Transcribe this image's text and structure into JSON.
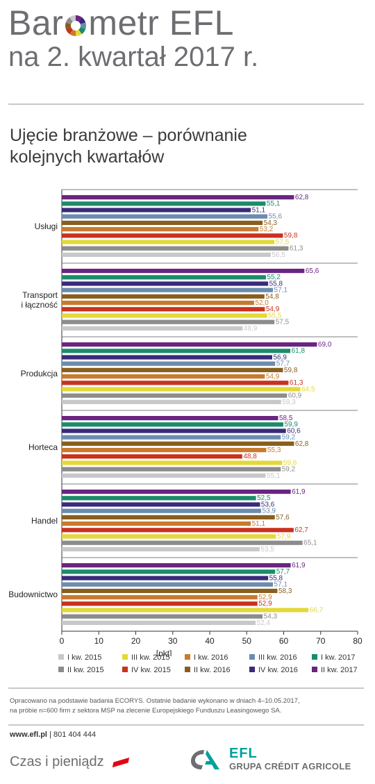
{
  "header": {
    "title_part1": "Bar",
    "title_part2": "metr EFL",
    "title_line2": "na 2. kwartał 2017 r."
  },
  "subtitle": "Ujęcie branżowe – porównanie kolejnych kwartałów",
  "colors": {
    "I kw. 2015": "#c7c8ca",
    "II kw. 2015": "#8c8c8c",
    "III kw. 2015": "#e2d93a",
    "IV kw. 2015": "#c8321e",
    "I kw. 2016": "#c87a2e",
    "II kw. 2016": "#8a5e1e",
    "III kw. 2016": "#6a8caf",
    "IV kw. 2016": "#3a2a7a",
    "I kw. 2017": "#1a8c6a",
    "II kw. 2017": "#6a2580"
  },
  "chart_data": {
    "type": "bar",
    "orientation": "horizontal",
    "xlabel": "[pkt]",
    "xlim": [
      0,
      80
    ],
    "xticks": [
      "0",
      "10",
      "20",
      "30",
      "40",
      "50",
      "60",
      "70",
      "80"
    ],
    "grid": false,
    "legend_position": "bottom",
    "categories": [
      "Usługi",
      "Transport i łączność",
      "Produkcja",
      "Horteca",
      "Handel",
      "Budownictwo"
    ],
    "series": [
      {
        "name": "II kw. 2017",
        "color": "#6a2580",
        "values": [
          "62,8",
          "65,6",
          "69,0",
          "58,5",
          "61,9",
          "61,9"
        ]
      },
      {
        "name": "I kw. 2017",
        "color": "#1a8c6a",
        "values": [
          "55,1",
          "55,2",
          "61,8",
          "59,9",
          "52,5",
          "57,7"
        ]
      },
      {
        "name": "IV kw. 2016",
        "color": "#3a2a7a",
        "values": [
          "51,1",
          "55,8",
          "56,9",
          "60,6",
          "53,6",
          "55,8"
        ]
      },
      {
        "name": "III kw. 2016",
        "color": "#6a8caf",
        "values": [
          "55,6",
          "57,1",
          "57,7",
          "59,2",
          "53,9",
          "57,1"
        ]
      },
      {
        "name": "II kw. 2016",
        "color": "#8a5e1e",
        "values": [
          "54,3",
          "54,8",
          "59,8",
          "62,8",
          "57,6",
          "58,3"
        ]
      },
      {
        "name": "I kw. 2016",
        "color": "#c87a2e",
        "values": [
          "53,2",
          "52,0",
          "54,9",
          "55,3",
          "51,1",
          "52,9"
        ]
      },
      {
        "name": "IV kw. 2015",
        "color": "#c8321e",
        "values": [
          "59,8",
          "54,9",
          "61,3",
          "48,8",
          "62,7",
          "52,9"
        ]
      },
      {
        "name": "III kw. 2015",
        "color": "#e2d93a",
        "values": [
          "57,5",
          "55,5",
          "64,5",
          "59,6",
          "57,9",
          "66,7"
        ]
      },
      {
        "name": "II kw. 2015",
        "color": "#8c8c8c",
        "values": [
          "61,3",
          "57,5",
          "60,9",
          "59,2",
          "65,1",
          "54,3"
        ]
      },
      {
        "name": "I kw. 2015",
        "color": "#c7c8ca",
        "values": [
          "56,5",
          "48,9",
          "59,3",
          "55,1",
          "53,5",
          "52,4"
        ]
      }
    ]
  },
  "legend": {
    "row1": [
      {
        "label": "I kw. 2015",
        "color": "#c7c8ca"
      },
      {
        "label": "III kw. 2015",
        "color": "#e2d93a"
      },
      {
        "label": "I kw. 2016",
        "color": "#c87a2e"
      },
      {
        "label": "III kw. 2016",
        "color": "#6a8caf"
      },
      {
        "label": "I kw. 2017",
        "color": "#1a8c6a"
      }
    ],
    "row2": [
      {
        "label": "II kw. 2015",
        "color": "#8c8c8c"
      },
      {
        "label": "IV kw. 2015",
        "color": "#c8321e"
      },
      {
        "label": "II kw. 2016",
        "color": "#8a5e1e"
      },
      {
        "label": "IV kw. 2016",
        "color": "#3a2a7a"
      },
      {
        "label": "II kw. 2017",
        "color": "#6a2580"
      }
    ]
  },
  "footnote": {
    "line1": "Opracowano na podstawie badania ECORYS. Ostatnie badanie wykonano w dniach 4–10.05.2017,",
    "line2": "na próbie n=600 firm z sektora MSP na zlecenie Europejskiego Funduszu Leasingowego SA."
  },
  "contact": {
    "website": "www.efl.pl",
    "separator": "|",
    "phone": "801 404 444"
  },
  "slogan": "Czas i pieniądz",
  "brand": {
    "name": "EFL",
    "group": "GRUPA CRÉDIT AGRICOLE"
  }
}
